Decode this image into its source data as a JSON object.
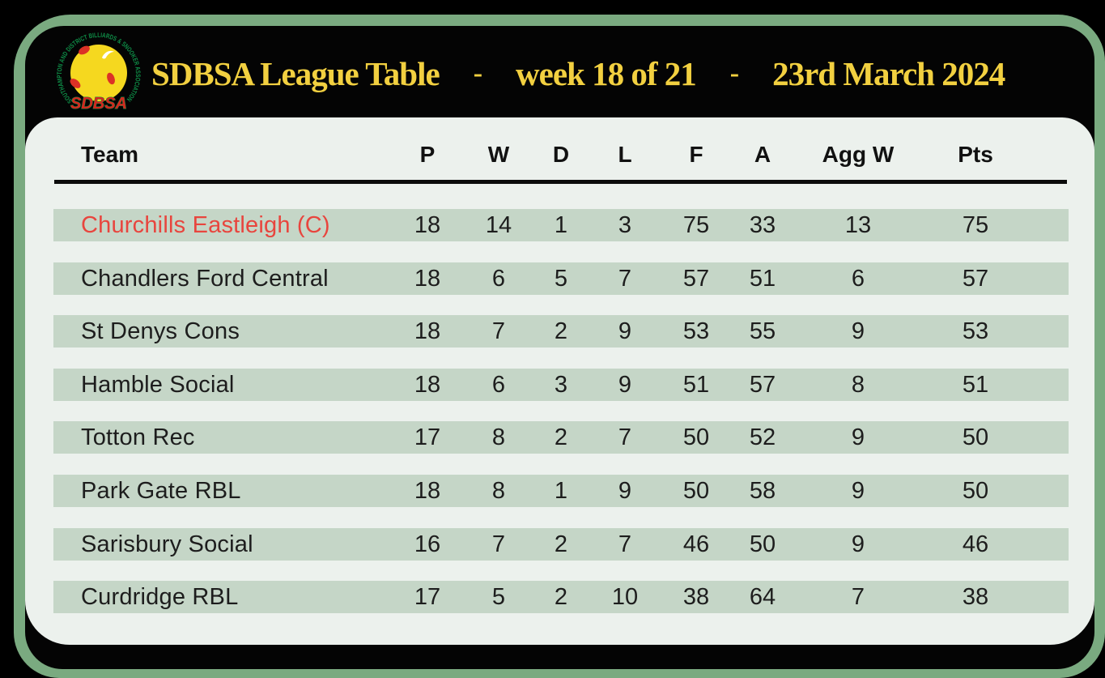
{
  "header": {
    "title": "SDBSA League Table",
    "separator": "-",
    "week": "week 18 of 21",
    "date": "23rd March 2024"
  },
  "logo": {
    "ring_text": "SOUTHAMPTON AND DISTRICT BILLIARDS & SNOOKER ASSOCIATION",
    "wordmark": "SDBSA"
  },
  "table": {
    "columns": [
      "Team",
      "P",
      "W",
      "D",
      "L",
      "F",
      "A",
      "Agg W",
      "Pts"
    ],
    "rows": [
      {
        "team": "Churchills Eastleigh (C)",
        "champion": true,
        "values": [
          18,
          14,
          1,
          3,
          75,
          33,
          13,
          75
        ]
      },
      {
        "team": "Chandlers Ford Central",
        "champion": false,
        "values": [
          18,
          6,
          5,
          7,
          57,
          51,
          6,
          57
        ]
      },
      {
        "team": "St Denys Cons",
        "champion": false,
        "values": [
          18,
          7,
          2,
          9,
          53,
          55,
          9,
          53
        ]
      },
      {
        "team": "Hamble Social",
        "champion": false,
        "values": [
          18,
          6,
          3,
          9,
          51,
          57,
          8,
          51
        ]
      },
      {
        "team": "Totton Rec",
        "champion": false,
        "values": [
          17,
          8,
          2,
          7,
          50,
          52,
          9,
          50
        ]
      },
      {
        "team": "Park Gate RBL",
        "champion": false,
        "values": [
          18,
          8,
          1,
          9,
          50,
          58,
          9,
          50
        ]
      },
      {
        "team": "Sarisbury Social",
        "champion": false,
        "values": [
          16,
          7,
          2,
          7,
          46,
          50,
          9,
          46
        ]
      },
      {
        "team": "Curdridge RBL",
        "champion": false,
        "values": [
          17,
          5,
          2,
          10,
          38,
          64,
          7,
          38
        ]
      }
    ]
  },
  "colors": {
    "frame_green": "#7aaa80",
    "card_black": "#040404",
    "panel_background": "#ecf1ed",
    "row_stripe_green": "#c5d6c7",
    "title_yellow": "#f2d040",
    "champion_red": "#e8453e",
    "logo_ball_yellow": "#f5d81f",
    "logo_spot_red": "#dc3126",
    "logo_ring_green": "#0f8f48"
  },
  "chart_data": {
    "type": "table",
    "title": "SDBSA League Table - week 18 of 21 - 23rd March 2024",
    "columns": [
      "Team",
      "P",
      "W",
      "D",
      "L",
      "F",
      "A",
      "Agg W",
      "Pts"
    ],
    "rows": [
      [
        "Churchills Eastleigh (C)",
        18,
        14,
        1,
        3,
        75,
        33,
        13,
        75
      ],
      [
        "Chandlers Ford Central",
        18,
        6,
        5,
        7,
        57,
        51,
        6,
        57
      ],
      [
        "St Denys Cons",
        18,
        7,
        2,
        9,
        53,
        55,
        9,
        53
      ],
      [
        "Hamble Social",
        18,
        6,
        3,
        9,
        51,
        57,
        8,
        51
      ],
      [
        "Totton Rec",
        17,
        8,
        2,
        7,
        50,
        52,
        9,
        50
      ],
      [
        "Park Gate RBL",
        18,
        8,
        1,
        9,
        50,
        58,
        9,
        50
      ],
      [
        "Sarisbury Social",
        16,
        7,
        2,
        7,
        46,
        50,
        9,
        46
      ],
      [
        "Curdridge RBL",
        17,
        5,
        2,
        10,
        38,
        64,
        7,
        38
      ]
    ],
    "highlighted_row": "Churchills Eastleigh (C)"
  }
}
